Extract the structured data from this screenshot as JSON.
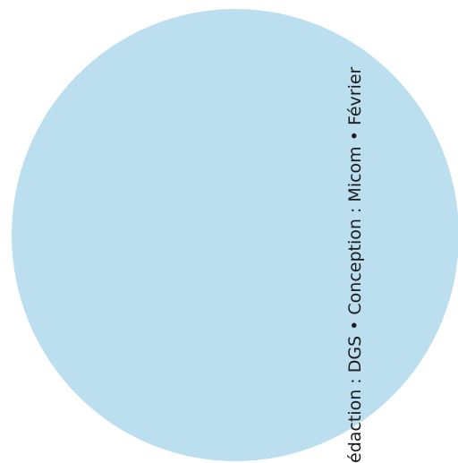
{
  "colors": {
    "background": "#ffffff",
    "circle": "#bcdff0",
    "text": "#1a1a1a"
  },
  "credit_text": "édaction : DGS • Conception : Micom • Février"
}
